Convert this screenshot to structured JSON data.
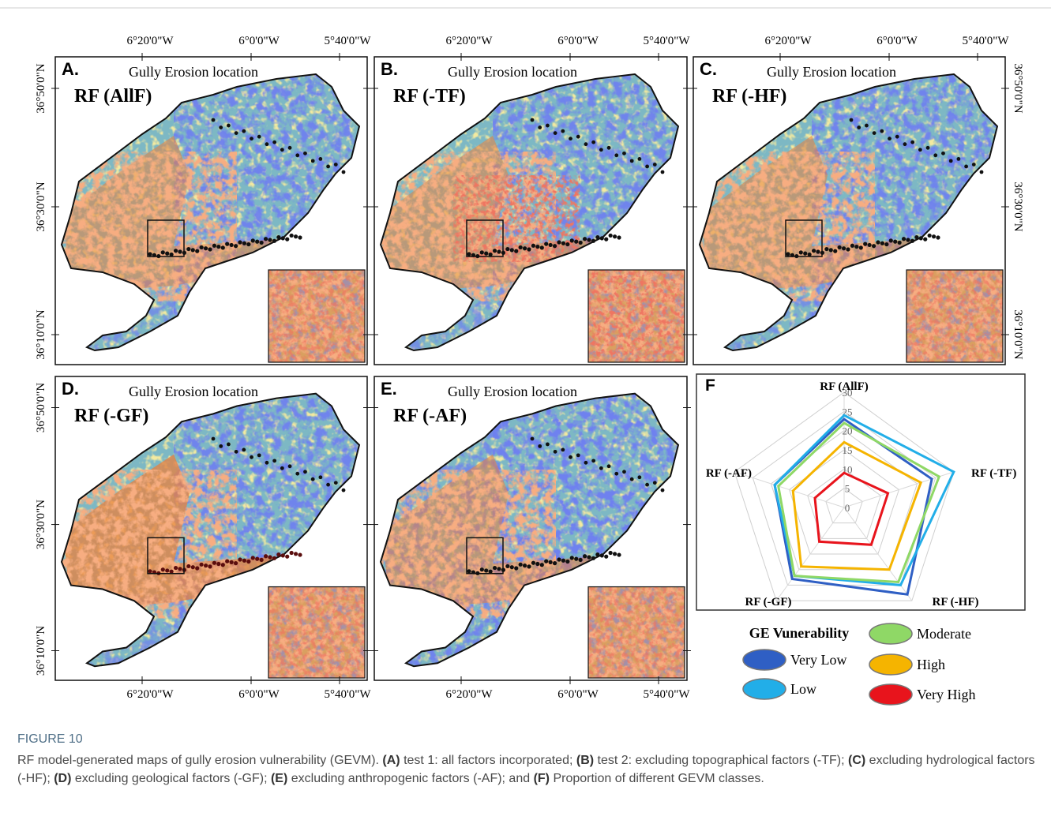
{
  "panels": [
    {
      "letter": "A.",
      "title": "Gully Erosion location",
      "model": "RF (AllF)"
    },
    {
      "letter": "B.",
      "title": "Gully Erosion location",
      "model": "RF (-TF)"
    },
    {
      "letter": "C.",
      "title": "Gully Erosion location",
      "model": "RF (-HF)"
    },
    {
      "letter": "D.",
      "title": "Gully Erosion location",
      "model": "RF (-GF)"
    },
    {
      "letter": "E.",
      "title": "Gully Erosion location",
      "model": "RF (-AF)"
    }
  ],
  "longitude_labels": [
    "6°20'0\"W",
    "6°0'0\"W",
    "5°40'0\"W"
  ],
  "latitude_labels": [
    "36°50'0\"N",
    "36°30'0\"N",
    "36°10'0\"N"
  ],
  "chart_data": {
    "type": "radar",
    "panel_letter": "F",
    "categories": [
      "RF (AllF)",
      "RF (-TF)",
      "RF (-HF)",
      "RF (-GF)",
      "RF (-AF)"
    ],
    "ylim": [
      0,
      30
    ],
    "yticks": [
      0,
      5,
      10,
      15,
      20,
      25,
      30
    ],
    "grid": true,
    "series": [
      {
        "name": "Very Low",
        "color": "#2f5fc4",
        "values": [
          23,
          24,
          28,
          23,
          19
        ]
      },
      {
        "name": "Low",
        "color": "#22aee8",
        "values": [
          24,
          30,
          25,
          22,
          19
        ]
      },
      {
        "name": "Moderate",
        "color": "#8fd866",
        "values": [
          22,
          26,
          24,
          22,
          18
        ]
      },
      {
        "name": "High",
        "color": "#f5b400",
        "values": [
          17,
          21,
          20,
          19,
          14
        ]
      },
      {
        "name": "Very High",
        "color": "#e8141c",
        "values": [
          9,
          12,
          12,
          11,
          8
        ]
      }
    ]
  },
  "legend": {
    "title": "GE Vunerability"
  },
  "caption": {
    "label": "FIGURE 10",
    "parts": [
      {
        "text": "RF model-generated maps of gully erosion vulnerability (GEVM). ",
        "bold": false
      },
      {
        "text": "(A)",
        "bold": true
      },
      {
        "text": " test 1: all factors incorporated; ",
        "bold": false
      },
      {
        "text": "(B)",
        "bold": true
      },
      {
        "text": " test 2: excluding topographical factors (-TF); ",
        "bold": false
      },
      {
        "text": "(C)",
        "bold": true
      },
      {
        "text": " excluding hydrological factors (-HF); ",
        "bold": false
      },
      {
        "text": "(D)",
        "bold": true
      },
      {
        "text": " excluding geological factors (-GF); ",
        "bold": false
      },
      {
        "text": "(E)",
        "bold": true
      },
      {
        "text": " excluding anthropogenic factors (-AF); and ",
        "bold": false
      },
      {
        "text": "(F)",
        "bold": true
      },
      {
        "text": " Proportion of different GEVM classes.",
        "bold": false
      }
    ]
  }
}
